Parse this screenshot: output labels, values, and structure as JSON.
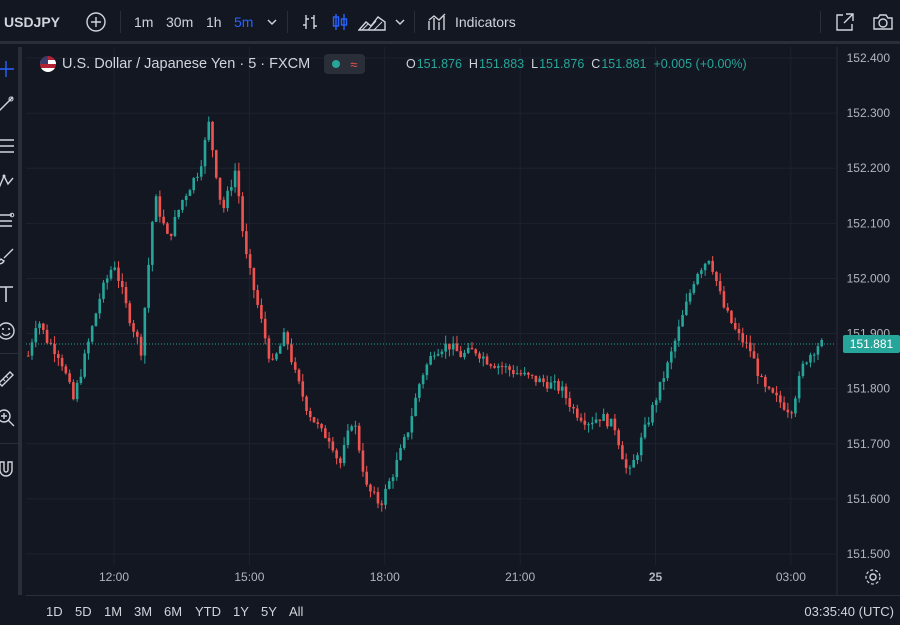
{
  "toolbar": {
    "symbol": "USDJPY",
    "intervals": [
      "1m",
      "30m",
      "1h",
      "5m"
    ],
    "active_interval": "5m",
    "indicators_label": "Indicators"
  },
  "legend": {
    "title": "U.S. Dollar / Japanese Yen · 5 · FXCM",
    "ohlc": [
      {
        "k": "O",
        "v": "151.876"
      },
      {
        "k": "H",
        "v": "151.883"
      },
      {
        "k": "L",
        "v": "151.876"
      },
      {
        "k": "C",
        "v": "151.881"
      },
      {
        "k": "",
        "v": "+0.005 (+0.00%)"
      }
    ]
  },
  "last_price": "151.881",
  "bottom": {
    "ranges": [
      "1D",
      "5D",
      "1M",
      "3M",
      "6M",
      "YTD",
      "1Y",
      "5Y",
      "All"
    ],
    "clock": "03:35:40 (UTC)"
  },
  "colors": {
    "up": "#26a69a",
    "down": "#ef5350",
    "background": "#131722",
    "accent": "#2962ff"
  },
  "chart_data": {
    "type": "candlestick",
    "symbol": "USDJPY",
    "interval": "5",
    "y_ticks": [
      "152.400",
      "152.300",
      "152.200",
      "152.100",
      "152.000",
      "151.900",
      "151.800",
      "151.700",
      "151.600",
      "151.500"
    ],
    "ylim": [
      151.48,
      152.42
    ],
    "x_ticks": [
      "12:00",
      "15:00",
      "18:00",
      "21:00",
      "25",
      "03:00"
    ],
    "x_tick_hours": [
      12,
      15,
      18,
      21,
      24,
      27
    ],
    "x_range_hours": [
      10.05,
      28.0
    ],
    "last_price": 151.881,
    "close_path": [
      [
        10.1,
        151.86
      ],
      [
        10.3,
        151.93
      ],
      [
        10.5,
        151.89
      ],
      [
        10.8,
        151.86
      ],
      [
        11.1,
        151.78
      ],
      [
        11.3,
        151.84
      ],
      [
        11.7,
        151.97
      ],
      [
        12.0,
        152.03
      ],
      [
        12.3,
        151.94
      ],
      [
        12.6,
        151.87
      ],
      [
        12.9,
        152.15
      ],
      [
        13.2,
        152.07
      ],
      [
        13.5,
        152.14
      ],
      [
        13.9,
        152.2
      ],
      [
        14.1,
        152.28
      ],
      [
        14.4,
        152.12
      ],
      [
        14.7,
        152.2
      ],
      [
        14.9,
        152.05
      ],
      [
        15.1,
        151.98
      ],
      [
        15.3,
        151.91
      ],
      [
        15.5,
        151.84
      ],
      [
        15.8,
        151.9
      ],
      [
        16.0,
        151.83
      ],
      [
        16.3,
        151.76
      ],
      [
        16.6,
        151.72
      ],
      [
        16.8,
        151.71
      ],
      [
        17.0,
        151.66
      ],
      [
        17.3,
        151.75
      ],
      [
        17.6,
        151.62
      ],
      [
        17.9,
        151.59
      ],
      [
        18.2,
        151.65
      ],
      [
        18.5,
        151.72
      ],
      [
        18.8,
        151.82
      ],
      [
        19.1,
        151.87
      ],
      [
        19.4,
        151.88
      ],
      [
        19.7,
        151.86
      ],
      [
        20.0,
        151.87
      ],
      [
        20.3,
        151.85
      ],
      [
        20.6,
        151.84
      ],
      [
        20.9,
        151.83
      ],
      [
        21.2,
        151.82
      ],
      [
        21.6,
        151.81
      ],
      [
        21.9,
        151.8
      ],
      [
        22.2,
        151.76
      ],
      [
        22.5,
        151.74
      ],
      [
        22.8,
        151.75
      ],
      [
        23.1,
        151.73
      ],
      [
        23.4,
        151.64
      ],
      [
        23.7,
        151.71
      ],
      [
        24.0,
        151.78
      ],
      [
        24.3,
        151.85
      ],
      [
        24.6,
        151.93
      ],
      [
        24.9,
        152.01
      ],
      [
        25.2,
        152.04
      ],
      [
        25.5,
        151.95
      ],
      [
        25.8,
        151.9
      ],
      [
        26.1,
        151.87
      ],
      [
        26.4,
        151.8
      ],
      [
        26.7,
        151.78
      ],
      [
        27.0,
        151.76
      ],
      [
        27.3,
        151.85
      ],
      [
        27.6,
        151.88
      ],
      [
        27.7,
        151.881
      ]
    ]
  }
}
